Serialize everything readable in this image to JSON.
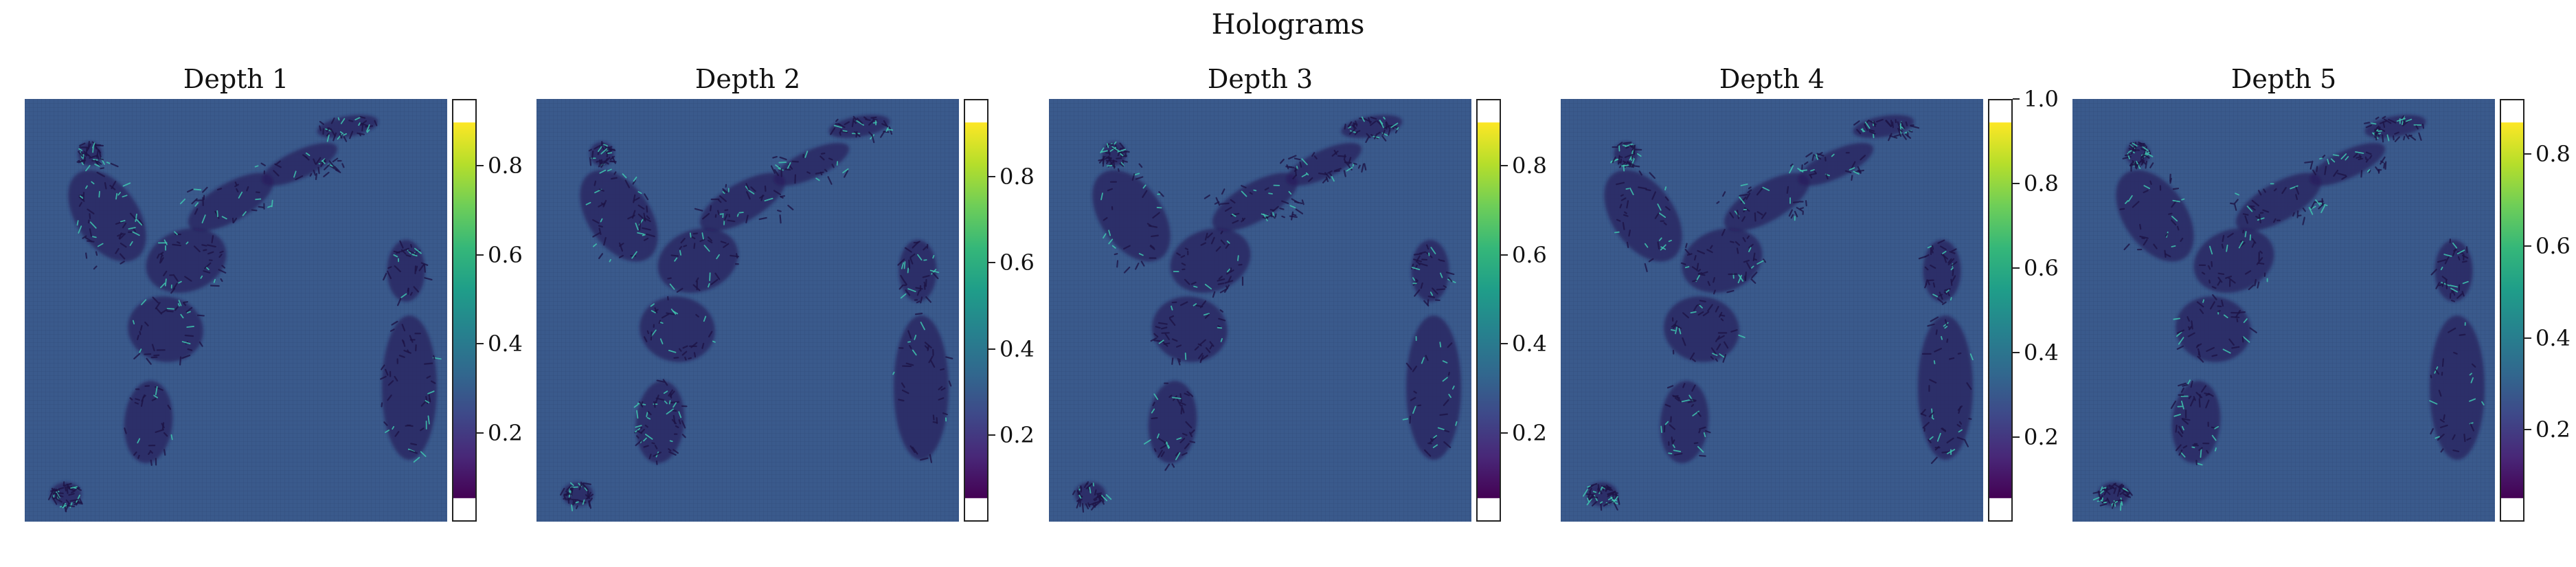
{
  "figure": {
    "title": "Holograms"
  },
  "colormap": {
    "name": "viridis",
    "stops": [
      "#440154",
      "#482878",
      "#3e4989",
      "#31688e",
      "#26828e",
      "#1f9e89",
      "#35b779",
      "#6ece58",
      "#b5de2b",
      "#fde725"
    ],
    "image_background": "#3a5a8c",
    "image_dark": "#2a1f5e",
    "image_bright": "#3fc7b0"
  },
  "chart_data": [
    {
      "type": "heatmap",
      "title": "Depth 1",
      "xlabel": "",
      "ylabel": "",
      "grid": false,
      "colorbar": {
        "range": [
          0.0,
          0.95
        ],
        "ticks": [
          0.2,
          0.4,
          0.6,
          0.8
        ],
        "tick_labels": [
          "0.2",
          "0.4",
          "0.6",
          "0.8"
        ]
      }
    },
    {
      "type": "heatmap",
      "title": "Depth 2",
      "xlabel": "",
      "ylabel": "",
      "grid": false,
      "colorbar": {
        "range": [
          0.0,
          0.98
        ],
        "ticks": [
          0.2,
          0.4,
          0.6,
          0.8
        ],
        "tick_labels": [
          "0.2",
          "0.4",
          "0.6",
          "0.8"
        ]
      }
    },
    {
      "type": "heatmap",
      "title": "Depth 3",
      "xlabel": "",
      "ylabel": "",
      "grid": false,
      "colorbar": {
        "range": [
          0.0,
          0.95
        ],
        "ticks": [
          0.2,
          0.4,
          0.6,
          0.8
        ],
        "tick_labels": [
          "0.2",
          "0.4",
          "0.6",
          "0.8"
        ]
      }
    },
    {
      "type": "heatmap",
      "title": "Depth 4",
      "xlabel": "",
      "ylabel": "",
      "grid": false,
      "colorbar": {
        "range": [
          0.0,
          1.0
        ],
        "ticks": [
          0.2,
          0.4,
          0.6,
          0.8,
          1.0
        ],
        "tick_labels": [
          "0.2",
          "0.4",
          "0.6",
          "0.8",
          "1.0"
        ]
      }
    },
    {
      "type": "heatmap",
      "title": "Depth 5",
      "xlabel": "",
      "ylabel": "",
      "grid": false,
      "colorbar": {
        "range": [
          0.0,
          0.92
        ],
        "ticks": [
          0.2,
          0.4,
          0.6,
          0.8
        ],
        "tick_labels": [
          "0.2",
          "0.4",
          "0.6",
          "0.8"
        ]
      }
    }
  ]
}
